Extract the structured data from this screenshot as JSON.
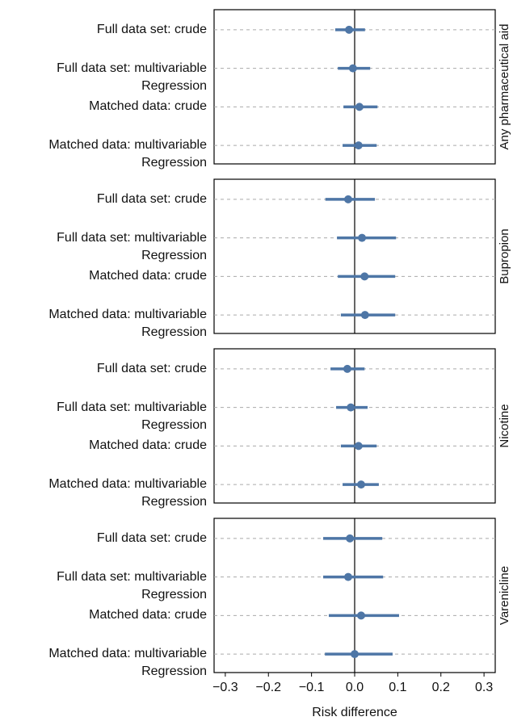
{
  "chart_data": [
    {
      "type": "forest",
      "title": "Any pharmaceutical aid",
      "categories": [
        "Full data set: crude",
        "Full data set: multivariable\nRegression",
        "Matched data: crude",
        "Matched data: multivariable\nRegression"
      ],
      "values": [
        -0.013,
        -0.004,
        0.011,
        0.009
      ],
      "lower": [
        -0.045,
        -0.039,
        -0.026,
        -0.028
      ],
      "upper": [
        0.024,
        0.036,
        0.053,
        0.051
      ],
      "color": "#4e76a6",
      "xlim": [
        -0.326,
        0.326
      ]
    },
    {
      "type": "forest",
      "title": "Bupropion",
      "categories": [
        "Full data set: crude",
        "Full data set: multivariable\nRegression",
        "Matched data: crude",
        "Matched data: multivariable\nRegression"
      ],
      "values": [
        -0.015,
        0.017,
        0.023,
        0.024
      ],
      "lower": [
        -0.068,
        -0.041,
        -0.039,
        -0.032
      ],
      "upper": [
        0.047,
        0.096,
        0.094,
        0.094
      ],
      "color": "#4e76a6",
      "xlim": [
        -0.326,
        0.326
      ]
    },
    {
      "type": "forest",
      "title": "Nicotine",
      "categories": [
        "Full data set: crude",
        "Full data set: multivariable\nRegression",
        "Matched data: crude",
        "Matched data: multivariable\nRegression"
      ],
      "values": [
        -0.017,
        -0.009,
        0.009,
        0.015
      ],
      "lower": [
        -0.056,
        -0.043,
        -0.032,
        -0.028
      ],
      "upper": [
        0.023,
        0.03,
        0.051,
        0.056
      ],
      "color": "#4e76a6",
      "xlim": [
        -0.326,
        0.326
      ]
    },
    {
      "type": "forest",
      "title": "Varenicline",
      "categories": [
        "Full data set: crude",
        "Full data set: multivariable\nRegression",
        "Matched data: crude",
        "Matched data: multivariable\nRegression"
      ],
      "values": [
        -0.011,
        -0.015,
        0.015,
        0
      ],
      "lower": [
        -0.073,
        -0.073,
        -0.06,
        -0.069
      ],
      "upper": [
        0.064,
        0.066,
        0.103,
        0.088
      ],
      "color": "#4e76a6",
      "xlim": [
        -0.326,
        0.326
      ],
      "x_label": "Risk difference",
      "xticks": [
        {
          "value": -0.3,
          "label": "−0.3"
        },
        {
          "value": -0.2,
          "label": "−0.2"
        },
        {
          "value": -0.1,
          "label": "−0.1"
        },
        {
          "value": 0,
          "label": "0.0"
        },
        0.1,
        0.2,
        0.3
      ]
    }
  ]
}
